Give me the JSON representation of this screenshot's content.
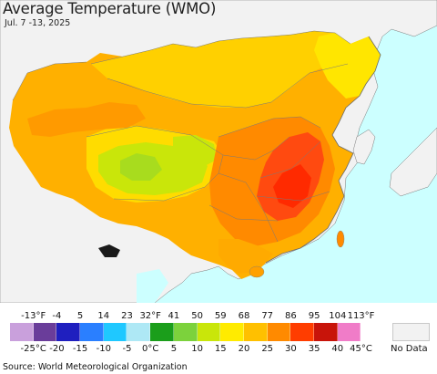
{
  "map": {
    "title": "Average Temperature (WMO)",
    "subtitle": "Jul. 7 -13, 2025",
    "ocean_color": "#ccffff",
    "land_outside_color": "#f2f2f2"
  },
  "legend": {
    "fahrenheit_ticks": [
      "-13°F",
      "-4",
      "5",
      "14",
      "23",
      "32°F",
      "41",
      "50",
      "59",
      "68",
      "77",
      "86",
      "95",
      "104",
      "113°F"
    ],
    "celsius_ticks": [
      "-25°C",
      "-20",
      "-15",
      "-10",
      "-5",
      "0°C",
      "5",
      "10",
      "15",
      "20",
      "25",
      "30",
      "35",
      "40",
      "45°C"
    ],
    "colors": [
      "#c9a0dc",
      "#6a3d9a",
      "#1f1fbf",
      "#2a7fff",
      "#1fc8ff",
      "#aee8f5",
      "#1b9e1b",
      "#7cd23c",
      "#c9e60a",
      "#ffeb00",
      "#ffc000",
      "#ff8a00",
      "#ff3d00",
      "#c8140a",
      "#f07cc8"
    ],
    "no_data_label": "No Data",
    "no_data_color": "#f2f2f2"
  },
  "source": "Source: World Meteorological Organization"
}
